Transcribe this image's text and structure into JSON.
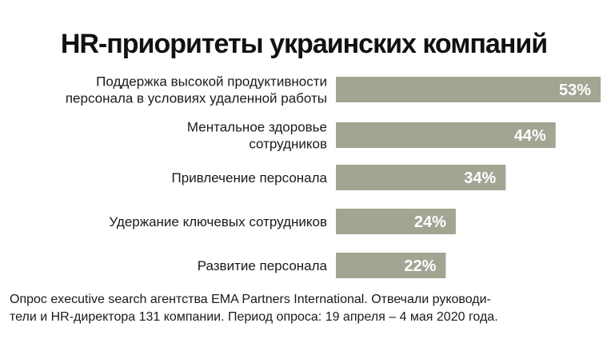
{
  "chart_data": {
    "type": "bar",
    "orientation": "horizontal",
    "title": "HR-приоритеты украинских компаний",
    "categories": [
      [
        "Поддержка высокой продуктивности",
        "персонала в условиях удаленной работы"
      ],
      [
        "Ментальное здоровье",
        "сотрудников"
      ],
      [
        "Привлечение персонала"
      ],
      [
        "Удержание ключевых сотрудников"
      ],
      [
        "Развитие персонала"
      ]
    ],
    "values": [
      53,
      44,
      34,
      24,
      22
    ],
    "value_labels": [
      "53%",
      "44%",
      "34%",
      "24%",
      "22%"
    ],
    "xlim": [
      0,
      53
    ],
    "grid": false,
    "legend": "none",
    "bar_color": "#a3a593",
    "value_label_color": "#ffffff"
  },
  "note": {
    "lines": [
      "Опрос executive search агентства EMA Partners International. Отвечали руководи-",
      "тели и HR-директора 131 компании. Период опроса: 19 апреля – 4 мая 2020 года."
    ]
  }
}
